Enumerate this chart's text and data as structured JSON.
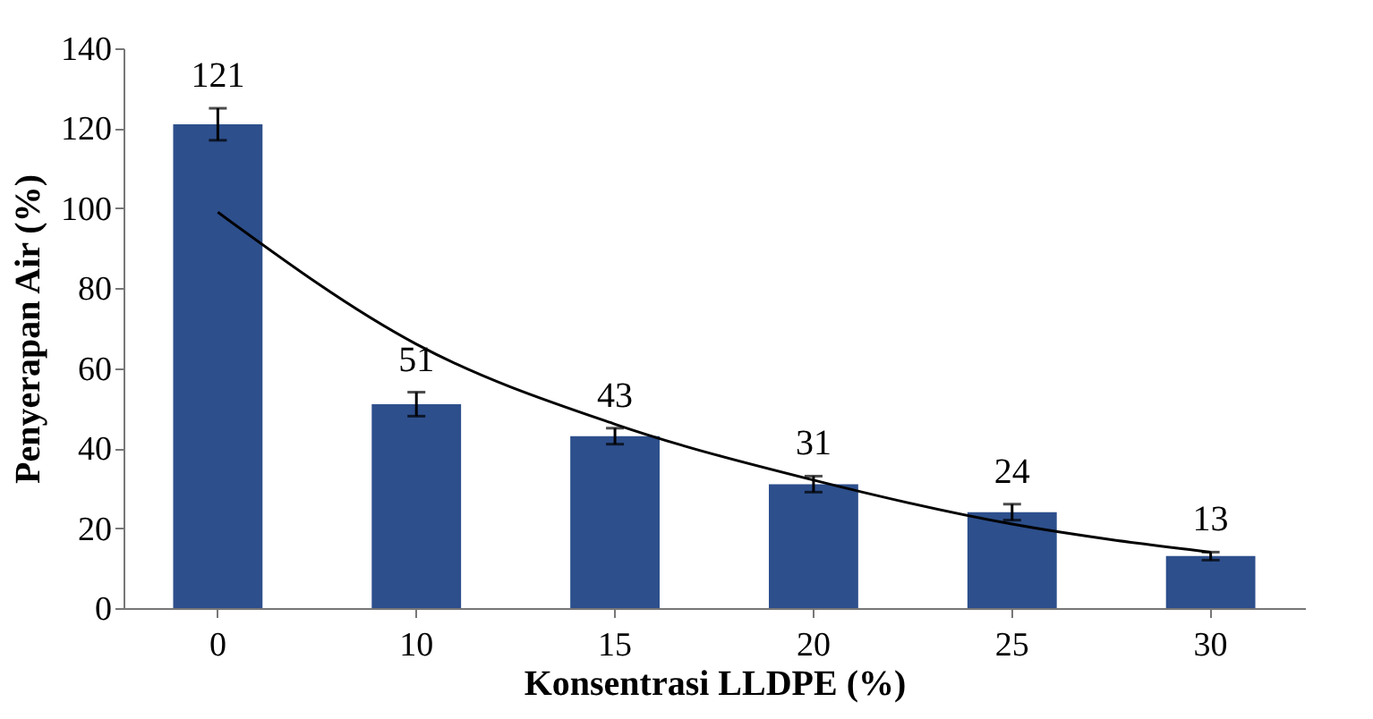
{
  "chart_data": {
    "type": "bar",
    "xlabel": "Konsentrasi LLDPE  (%)",
    "ylabel": "Penyerapan Air  (%)",
    "categories": [
      "0",
      "10",
      "15",
      "20",
      "25",
      "30"
    ],
    "series": [
      {
        "color": "#2d4f8c",
        "values": [
          121,
          51,
          43,
          31,
          24,
          13
        ],
        "errors": [
          4,
          3,
          2,
          2,
          2,
          1
        ],
        "value_labels": [
          "121",
          "51",
          "43",
          "31",
          "24",
          "13"
        ]
      },
      {
        "type": "line",
        "color": "#000000",
        "x": [
          "0",
          "10",
          "15",
          "20",
          "25",
          "30"
        ],
        "values": [
          99,
          66,
          46,
          32,
          21,
          14
        ]
      }
    ],
    "ylim": [
      0,
      140
    ],
    "yticks": [
      0,
      20,
      40,
      60,
      80,
      100,
      120,
      140
    ],
    "grid": false
  }
}
